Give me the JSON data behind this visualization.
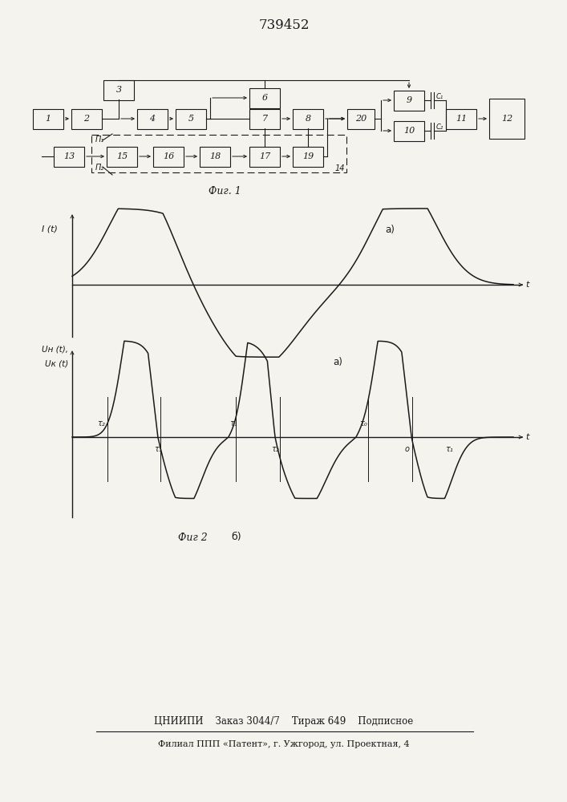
{
  "title": "739452",
  "fig1_label": "Фиг. 1",
  "fig2_label": "Фиг 2",
  "fig2b_label": "б)",
  "fig1a_label": "a)",
  "bottom_line1": "ЦНИИПИ    Заказ 3044/7    Тираж 649    Подписное",
  "bottom_line2": "Филиал ППП «Патент», г. Ужгород, ул. Проектная, 4",
  "bg_color": "#f5f3ee",
  "line_color": "#1a1a1a"
}
